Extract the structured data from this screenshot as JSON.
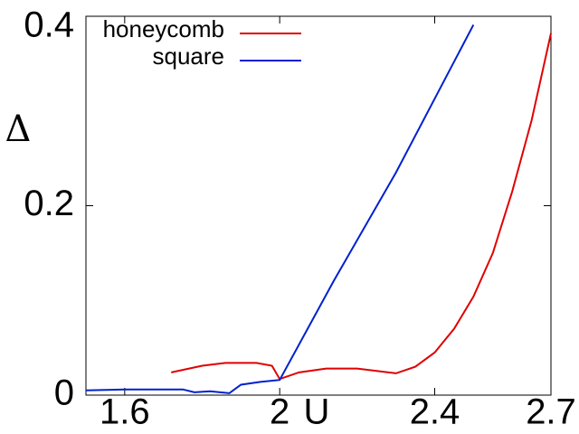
{
  "chart_data": {
    "type": "line",
    "xlabel": "U",
    "ylabel": "Δ",
    "xlim": [
      1.5,
      2.7
    ],
    "ylim": [
      0,
      0.4
    ],
    "xticks": [
      1.6,
      2,
      2.4,
      2.7
    ],
    "yticks": [
      0,
      0.2,
      0.4
    ],
    "legend": "upper left",
    "series": [
      {
        "name": "honeycomb",
        "color": "#e00000",
        "x": [
          1.72,
          1.8,
          1.86,
          1.94,
          1.98,
          2.0,
          2.05,
          2.12,
          2.2,
          2.3,
          2.35,
          2.4,
          2.45,
          2.5,
          2.55,
          2.6,
          2.65,
          2.7
        ],
        "values": [
          0.024,
          0.031,
          0.034,
          0.034,
          0.031,
          0.017,
          0.024,
          0.028,
          0.028,
          0.023,
          0.03,
          0.045,
          0.07,
          0.104,
          0.15,
          0.215,
          0.29,
          0.382
        ]
      },
      {
        "name": "square",
        "color": "#0020d0",
        "x": [
          1.5,
          1.6,
          1.75,
          1.78,
          1.82,
          1.87,
          1.9,
          1.95,
          2.0,
          2.14,
          2.3,
          2.5
        ],
        "values": [
          0.005,
          0.006,
          0.006,
          0.003,
          0.004,
          0.002,
          0.011,
          0.014,
          0.016,
          0.121,
          0.235,
          0.391
        ]
      }
    ]
  }
}
